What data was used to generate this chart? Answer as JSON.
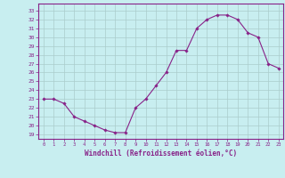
{
  "x": [
    0,
    1,
    2,
    3,
    4,
    5,
    6,
    7,
    8,
    9,
    10,
    11,
    12,
    13,
    14,
    15,
    16,
    17,
    18,
    19,
    20,
    21,
    22,
    23
  ],
  "y": [
    23.0,
    23.0,
    22.5,
    21.0,
    20.5,
    20.0,
    19.5,
    19.2,
    19.2,
    22.0,
    23.0,
    24.5,
    26.0,
    28.5,
    28.5,
    31.0,
    32.0,
    32.5,
    32.5,
    32.0,
    30.5,
    30.0,
    27.0,
    26.5
  ],
  "line_color": "#882288",
  "marker": "D",
  "marker_size": 1.8,
  "bg_color": "#c8eef0",
  "grid_color": "#aacccc",
  "axis_color": "#882288",
  "tick_color": "#882288",
  "xlabel": "Windchill (Refroidissement éolien,°C)",
  "xlabel_fontsize": 5.5,
  "ylabel_ticks": [
    19,
    20,
    21,
    22,
    23,
    24,
    25,
    26,
    27,
    28,
    29,
    30,
    31,
    32,
    33
  ],
  "ylim": [
    18.5,
    33.8
  ],
  "xlim": [
    -0.5,
    23.5
  ]
}
